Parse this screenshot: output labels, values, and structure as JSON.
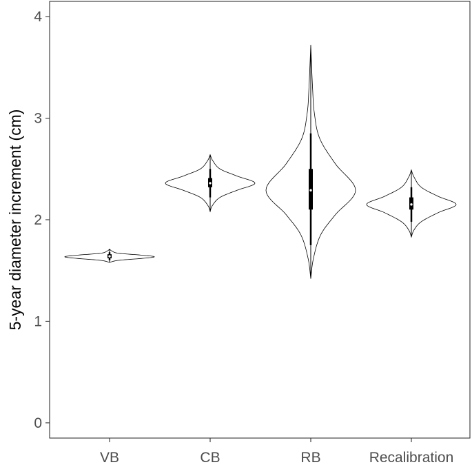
{
  "chart_data": {
    "type": "violin",
    "title": "",
    "xlabel": "",
    "ylabel": "5-year diameter increment (cm)",
    "ylim": [
      -0.15,
      4.15
    ],
    "yticks": [
      0,
      1,
      2,
      3,
      4
    ],
    "ytick_labels": [
      "0",
      "1",
      "2",
      "3",
      "4"
    ],
    "grid": false,
    "legend": "none",
    "categories": [
      "VB",
      "CB",
      "RB",
      "Recalibration"
    ],
    "series": [
      {
        "category": "VB",
        "min": 1.58,
        "max": 1.71,
        "q1": 1.62,
        "median": 1.64,
        "q3": 1.66,
        "whisker_low": 1.6,
        "whisker_high": 1.68,
        "density": [
          [
            1.58,
            0.0
          ],
          [
            1.6,
            0.2
          ],
          [
            1.62,
            0.75
          ],
          [
            1.635,
            1.0
          ],
          [
            1.65,
            0.75
          ],
          [
            1.67,
            0.2
          ],
          [
            1.69,
            0.06
          ],
          [
            1.71,
            0.0
          ]
        ]
      },
      {
        "category": "CB",
        "min": 2.08,
        "max": 2.64,
        "q1": 2.32,
        "median": 2.36,
        "q3": 2.41,
        "whisker_low": 2.22,
        "whisker_high": 2.5,
        "density": [
          [
            2.08,
            0.0
          ],
          [
            2.14,
            0.05
          ],
          [
            2.22,
            0.22
          ],
          [
            2.29,
            0.6
          ],
          [
            2.36,
            1.0
          ],
          [
            2.43,
            0.6
          ],
          [
            2.5,
            0.22
          ],
          [
            2.58,
            0.06
          ],
          [
            2.64,
            0.0
          ]
        ]
      },
      {
        "category": "RB",
        "min": 1.42,
        "max": 3.72,
        "q1": 2.1,
        "median": 2.29,
        "q3": 2.5,
        "whisker_low": 1.75,
        "whisker_high": 2.85,
        "density": [
          [
            1.42,
            0.0
          ],
          [
            1.62,
            0.06
          ],
          [
            1.85,
            0.22
          ],
          [
            2.05,
            0.55
          ],
          [
            2.29,
            1.0
          ],
          [
            2.55,
            0.55
          ],
          [
            2.8,
            0.2
          ],
          [
            3.05,
            0.08
          ],
          [
            3.3,
            0.04
          ],
          [
            3.72,
            0.0
          ]
        ]
      },
      {
        "category": "Recalibration",
        "min": 1.83,
        "max": 2.49,
        "q1": 2.1,
        "median": 2.15,
        "q3": 2.22,
        "whisker_low": 1.98,
        "whisker_high": 2.32,
        "density": [
          [
            1.83,
            0.0
          ],
          [
            1.9,
            0.06
          ],
          [
            1.98,
            0.22
          ],
          [
            2.07,
            0.6
          ],
          [
            2.15,
            1.0
          ],
          [
            2.23,
            0.6
          ],
          [
            2.32,
            0.22
          ],
          [
            2.42,
            0.06
          ],
          [
            2.49,
            0.0
          ]
        ]
      }
    ]
  }
}
